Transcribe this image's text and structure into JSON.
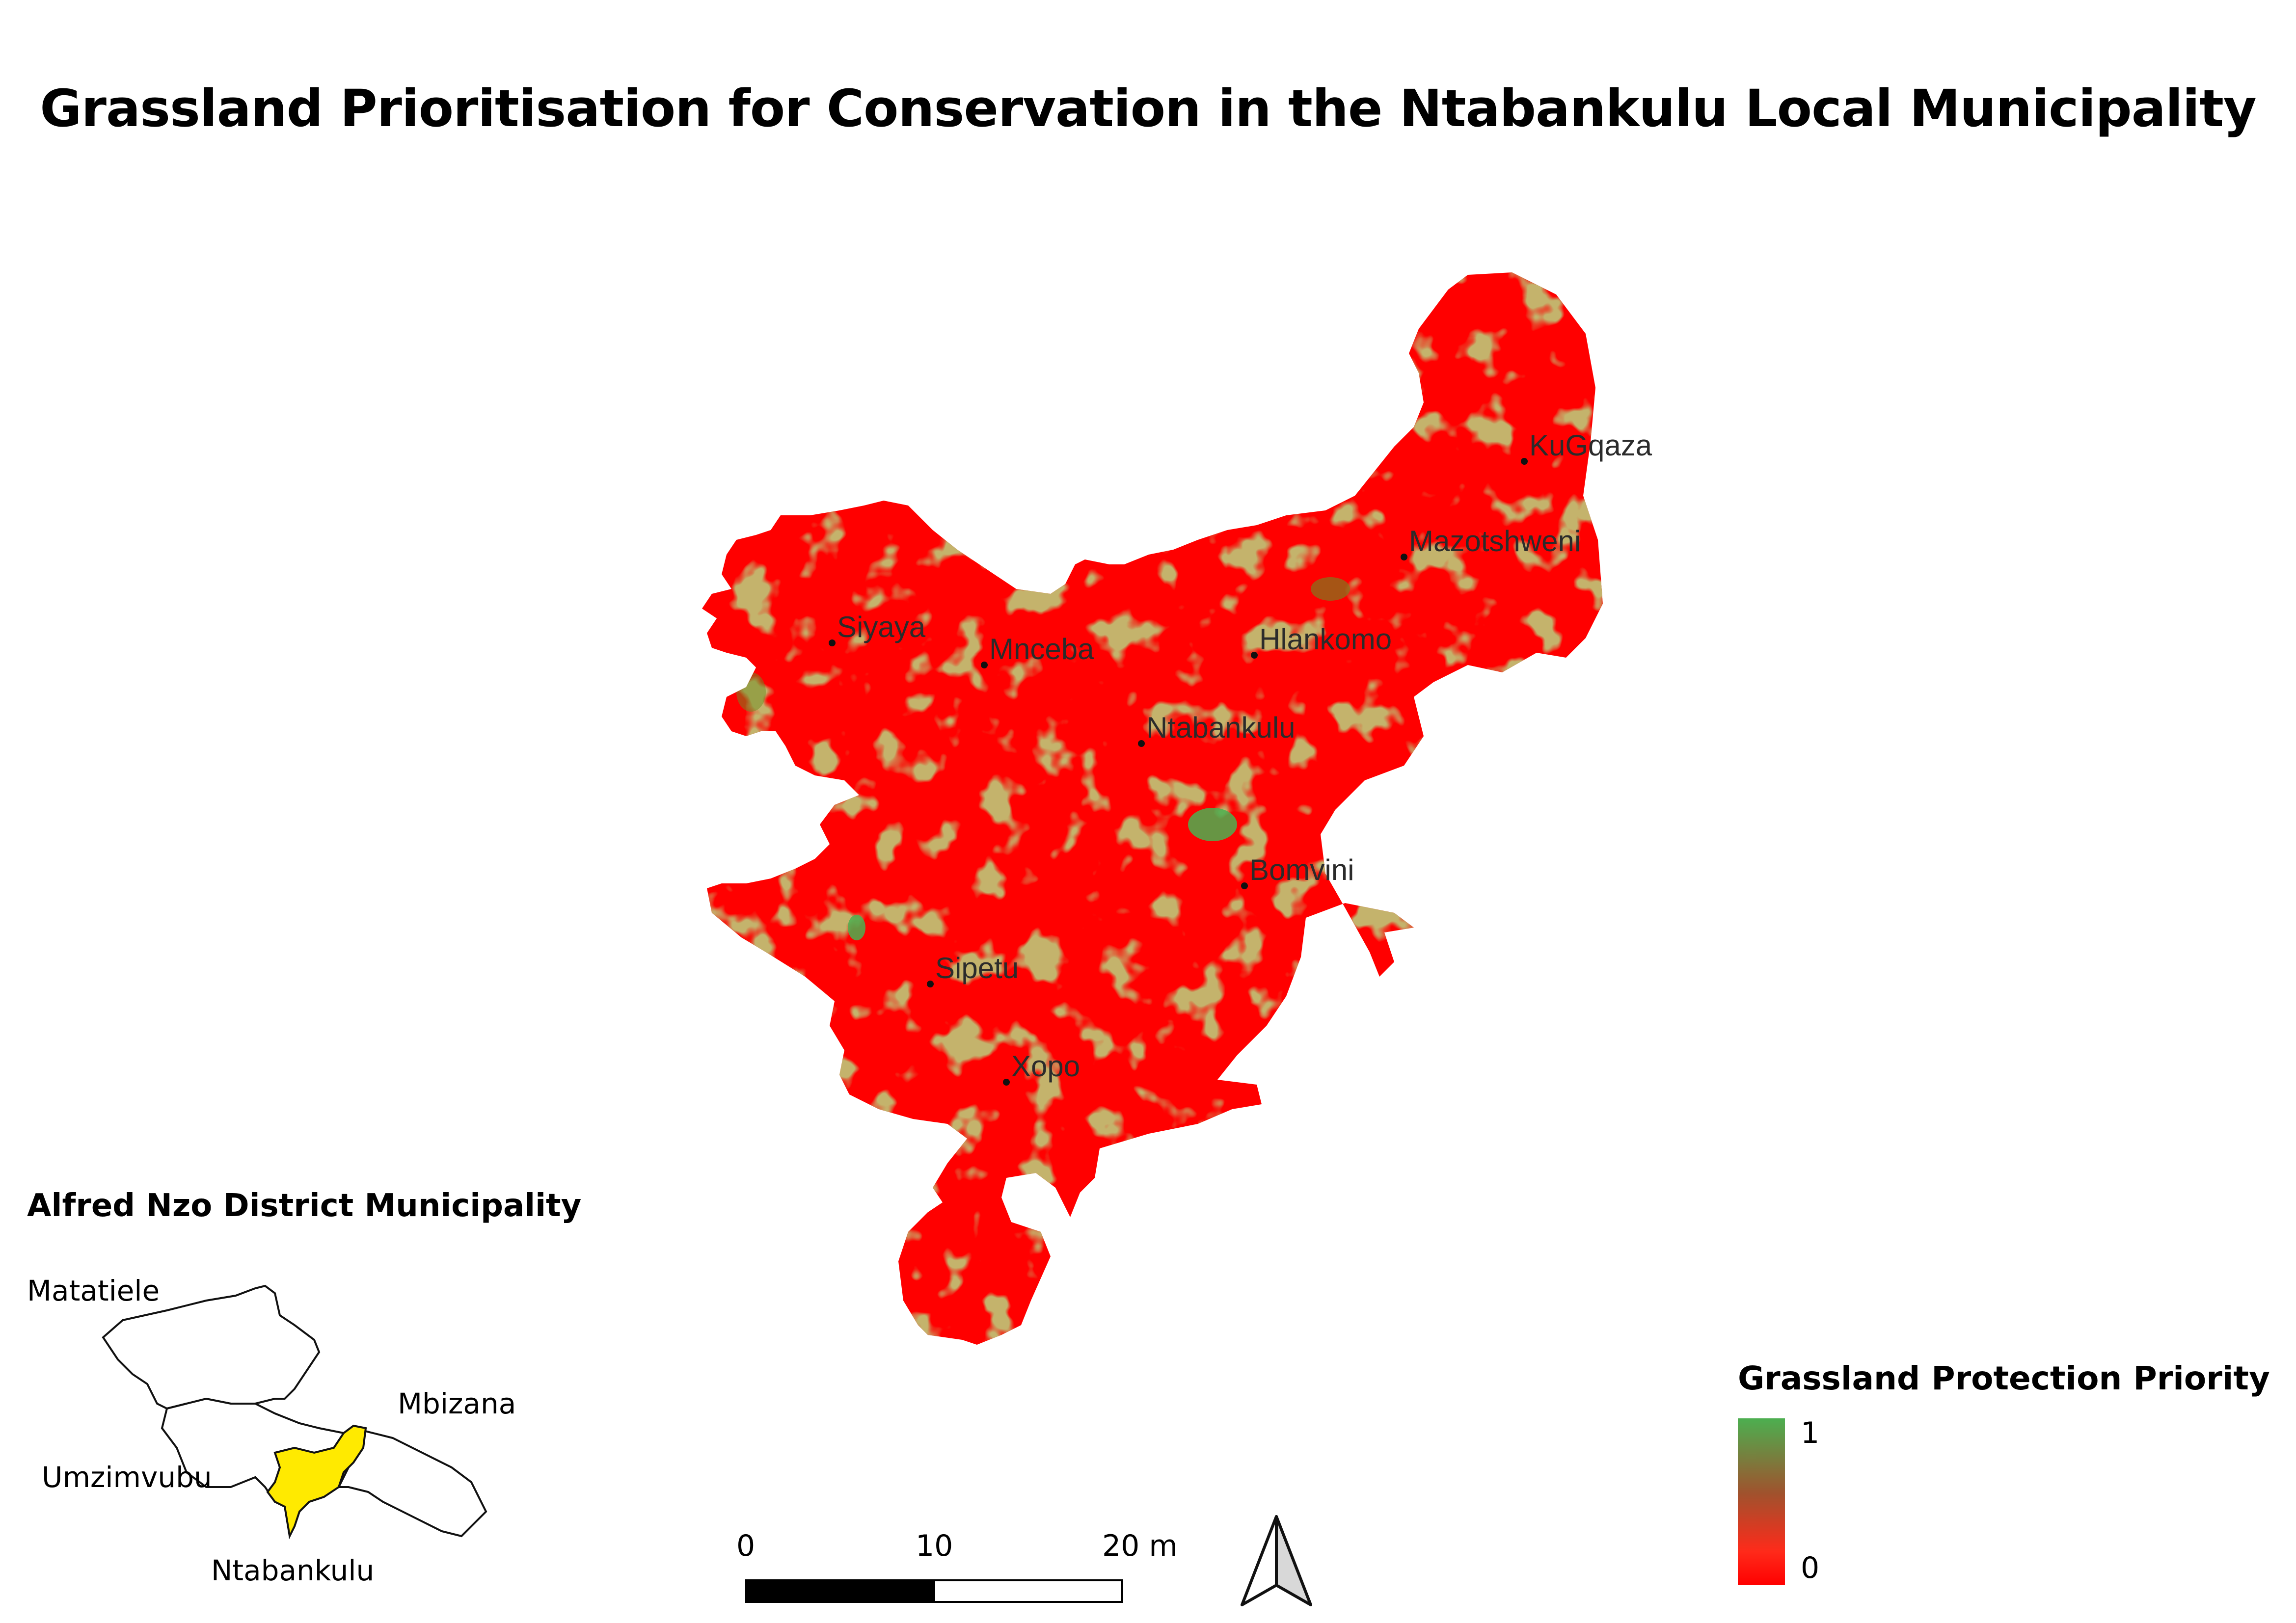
{
  "title": "Grassland Prioritisation for Conservation in the Ntabankulu Local Municipality",
  "places": [
    {
      "name": "KuGqaza"
    },
    {
      "name": "Mazotshweni"
    },
    {
      "name": "Siyaya"
    },
    {
      "name": "Mnceba"
    },
    {
      "name": "Hlankomo"
    },
    {
      "name": "Ntabankulu"
    },
    {
      "name": "Bomvini"
    },
    {
      "name": "Sipetu"
    },
    {
      "name": "Xopo"
    }
  ],
  "inset": {
    "title": "Alfred Nzo District Municipality",
    "labels": {
      "matatiele": "Matatiele",
      "mbizana": "Mbizana",
      "umzimvubu": "Umzimvubu",
      "ntabankulu": "Ntabankulu"
    },
    "highlight_color": "#ffea00"
  },
  "legend": {
    "title": "Grassland Protection Priority",
    "max_label": "1",
    "min_label": "0",
    "max_color": "#4caf50",
    "min_color": "#ff0000"
  },
  "scale_bar": {
    "labels": [
      "0",
      "10",
      "20 m"
    ]
  },
  "north_arrow": {
    "icon": "north-arrow-icon"
  },
  "colors": {
    "priority_low": "#ff0000",
    "priority_high": "#4caf50"
  }
}
